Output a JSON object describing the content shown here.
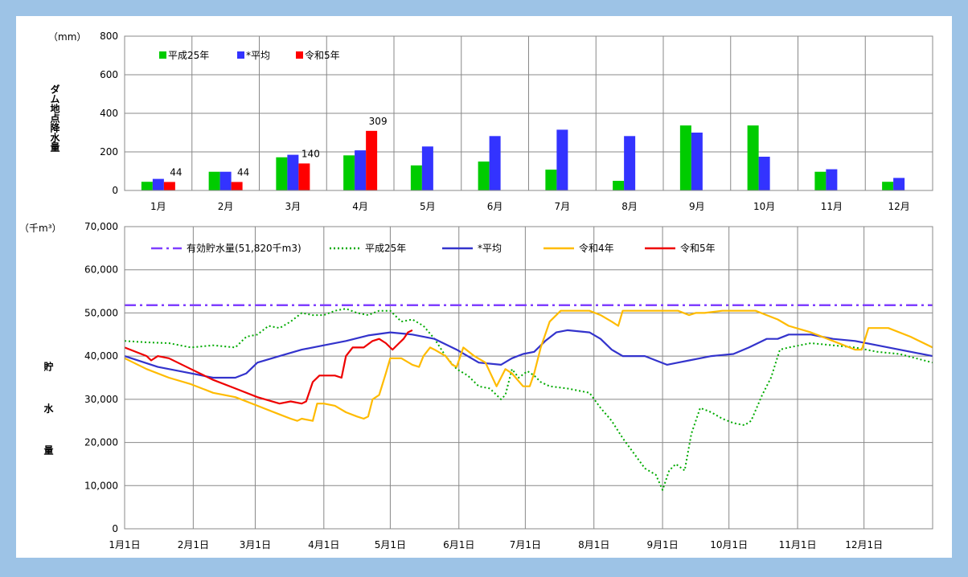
{
  "chart_data": [
    {
      "type": "bar",
      "ylabel": "ダム地点降水量",
      "yunit": "（mm）",
      "ylim": [
        0,
        800
      ],
      "yticks": [
        "0",
        "200",
        "400",
        "600",
        "800"
      ],
      "grid": true,
      "legend_position": "top-left",
      "categories": [
        "1月",
        "2月",
        "3月",
        "4月",
        "5月",
        "6月",
        "7月",
        "8月",
        "9月",
        "10月",
        "11月",
        "12月"
      ],
      "series": [
        {
          "name": "平成25年",
          "color": "#00cc00",
          "values": [
            45,
            97,
            172,
            182,
            130,
            150,
            108,
            50,
            337,
            337,
            97,
            45
          ]
        },
        {
          "name": "*平均",
          "color": "#3333ff",
          "values": [
            60,
            97,
            185,
            208,
            228,
            282,
            315,
            282,
            300,
            175,
            110,
            65
          ]
        },
        {
          "name": "令和5年",
          "color": "#ff0000",
          "values": [
            44,
            44,
            140,
            309,
            null,
            null,
            null,
            null,
            null,
            null,
            null,
            null
          ]
        }
      ],
      "data_labels": [
        {
          "series": 2,
          "index": 0,
          "text": "44"
        },
        {
          "series": 2,
          "index": 1,
          "text": "44"
        },
        {
          "series": 2,
          "index": 2,
          "text": "140"
        },
        {
          "series": 2,
          "index": 3,
          "text": "309"
        }
      ]
    },
    {
      "type": "line",
      "ylabel": "貯水量",
      "yunit": "（千m³）",
      "ylim": [
        0,
        70000
      ],
      "yticks": [
        "0",
        "10,000",
        "20,000",
        "30,000",
        "40,000",
        "50,000",
        "60,000",
        "70,000"
      ],
      "x_ticks": [
        "1月1日",
        "2月1日",
        "3月1日",
        "4月1日",
        "5月1日",
        "6月1日",
        "7月1日",
        "8月1日",
        "9月1日",
        "10月1日",
        "11月1日",
        "12月1日"
      ],
      "x_tick_days": [
        0,
        31,
        59,
        90,
        120,
        151,
        181,
        212,
        243,
        273,
        304,
        334
      ],
      "x_range_days": [
        0,
        365
      ],
      "grid": true,
      "legend_position": "top",
      "series": [
        {
          "name": "有効貯水量(51,820千m3)",
          "color": "#7f3fff",
          "style": "dashdot",
          "points": [
            [
              0,
              51820
            ],
            [
              365,
              51820
            ]
          ]
        },
        {
          "name": "平成25年",
          "color": "#00aa00",
          "style": "dotted",
          "points": [
            [
              0,
              43500
            ],
            [
              10,
              43200
            ],
            [
              20,
              43000
            ],
            [
              30,
              42000
            ],
            [
              40,
              42500
            ],
            [
              50,
              42000
            ],
            [
              55,
              44500
            ],
            [
              60,
              45000
            ],
            [
              65,
              47000
            ],
            [
              70,
              46500
            ],
            [
              75,
              48000
            ],
            [
              80,
              50000
            ],
            [
              85,
              49500
            ],
            [
              90,
              49500
            ],
            [
              95,
              50500
            ],
            [
              100,
              51000
            ],
            [
              105,
              50000
            ],
            [
              110,
              49500
            ],
            [
              115,
              50500
            ],
            [
              120,
              50500
            ],
            [
              125,
              48000
            ],
            [
              130,
              48500
            ],
            [
              135,
              47000
            ],
            [
              140,
              44000
            ],
            [
              145,
              40000
            ],
            [
              150,
              37000
            ],
            [
              155,
              35500
            ],
            [
              160,
              33000
            ],
            [
              165,
              32500
            ],
            [
              170,
              30000
            ],
            [
              172,
              31000
            ],
            [
              175,
              37000
            ],
            [
              178,
              35000
            ],
            [
              182,
              36500
            ],
            [
              185,
              35500
            ],
            [
              188,
              34000
            ],
            [
              192,
              33000
            ],
            [
              200,
              32500
            ],
            [
              205,
              32000
            ],
            [
              210,
              31500
            ],
            [
              215,
              28000
            ],
            [
              220,
              25000
            ],
            [
              225,
              21000
            ],
            [
              230,
              17500
            ],
            [
              235,
              14000
            ],
            [
              240,
              12500
            ],
            [
              243,
              9000
            ],
            [
              246,
              13500
            ],
            [
              249,
              15000
            ],
            [
              253,
              13500
            ],
            [
              256,
              22000
            ],
            [
              260,
              28000
            ],
            [
              265,
              27000
            ],
            [
              270,
              25500
            ],
            [
              275,
              24500
            ],
            [
              280,
              24000
            ],
            [
              283,
              25000
            ],
            [
              288,
              31000
            ],
            [
              292,
              35000
            ],
            [
              296,
              41500
            ],
            [
              300,
              42000
            ],
            [
              310,
              43000
            ],
            [
              320,
              42500
            ],
            [
              330,
              42000
            ],
            [
              340,
              41000
            ],
            [
              350,
              40500
            ],
            [
              365,
              38500
            ]
          ]
        },
        {
          "name": "*平均",
          "color": "#3333cc",
          "style": "solid",
          "points": [
            [
              0,
              40000
            ],
            [
              15,
              37500
            ],
            [
              30,
              36000
            ],
            [
              40,
              35000
            ],
            [
              50,
              35000
            ],
            [
              55,
              36000
            ],
            [
              60,
              38500
            ],
            [
              70,
              40000
            ],
            [
              80,
              41500
            ],
            [
              90,
              42500
            ],
            [
              100,
              43500
            ],
            [
              110,
              44800
            ],
            [
              120,
              45500
            ],
            [
              130,
              45000
            ],
            [
              140,
              44000
            ],
            [
              150,
              41500
            ],
            [
              160,
              38500
            ],
            [
              170,
              38000
            ],
            [
              175,
              39500
            ],
            [
              180,
              40500
            ],
            [
              185,
              41000
            ],
            [
              190,
              43500
            ],
            [
              195,
              45500
            ],
            [
              200,
              46000
            ],
            [
              210,
              45500
            ],
            [
              215,
              44000
            ],
            [
              220,
              41500
            ],
            [
              225,
              40000
            ],
            [
              235,
              40000
            ],
            [
              240,
              39000
            ],
            [
              245,
              38000
            ],
            [
              250,
              38500
            ],
            [
              255,
              39000
            ],
            [
              260,
              39500
            ],
            [
              265,
              40000
            ],
            [
              275,
              40500
            ],
            [
              282,
              42000
            ],
            [
              290,
              44000
            ],
            [
              295,
              44000
            ],
            [
              300,
              45000
            ],
            [
              310,
              45000
            ],
            [
              320,
              44000
            ],
            [
              330,
              43500
            ],
            [
              340,
              42500
            ],
            [
              350,
              41500
            ],
            [
              365,
              40000
            ]
          ]
        },
        {
          "name": "令和4年",
          "color": "#ffbb00",
          "style": "solid",
          "points": [
            [
              0,
              39500
            ],
            [
              10,
              37000
            ],
            [
              20,
              35000
            ],
            [
              30,
              33500
            ],
            [
              40,
              31500
            ],
            [
              50,
              30500
            ],
            [
              60,
              28500
            ],
            [
              70,
              26500
            ],
            [
              75,
              25500
            ],
            [
              78,
              25000
            ],
            [
              80,
              25500
            ],
            [
              85,
              25000
            ],
            [
              87,
              29000
            ],
            [
              90,
              29000
            ],
            [
              95,
              28500
            ],
            [
              100,
              27000
            ],
            [
              105,
              26000
            ],
            [
              108,
              25500
            ],
            [
              110,
              26000
            ],
            [
              112,
              30000
            ],
            [
              115,
              31000
            ],
            [
              118,
              36000
            ],
            [
              120,
              39500
            ],
            [
              125,
              39500
            ],
            [
              130,
              38000
            ],
            [
              133,
              37500
            ],
            [
              135,
              40000
            ],
            [
              138,
              42000
            ],
            [
              140,
              41500
            ],
            [
              145,
              40000
            ],
            [
              148,
              38000
            ],
            [
              150,
              37500
            ],
            [
              153,
              42000
            ],
            [
              158,
              40000
            ],
            [
              163,
              38500
            ],
            [
              168,
              33000
            ],
            [
              172,
              37000
            ],
            [
              175,
              36000
            ],
            [
              180,
              33000
            ],
            [
              183,
              33000
            ],
            [
              185,
              36000
            ],
            [
              188,
              42000
            ],
            [
              192,
              48000
            ],
            [
              197,
              50500
            ],
            [
              210,
              50500
            ],
            [
              215,
              49500
            ],
            [
              220,
              48000
            ],
            [
              223,
              47000
            ],
            [
              225,
              50500
            ],
            [
              240,
              50500
            ],
            [
              250,
              50500
            ],
            [
              255,
              49500
            ],
            [
              258,
              50000
            ],
            [
              262,
              50000
            ],
            [
              270,
              50500
            ],
            [
              280,
              50500
            ],
            [
              285,
              50500
            ],
            [
              290,
              49500
            ],
            [
              295,
              48500
            ],
            [
              300,
              47000
            ],
            [
              310,
              45500
            ],
            [
              320,
              43500
            ],
            [
              330,
              41500
            ],
            [
              333,
              41500
            ],
            [
              336,
              46500
            ],
            [
              345,
              46500
            ],
            [
              355,
              44500
            ],
            [
              365,
              42000
            ]
          ]
        },
        {
          "name": "令和5年",
          "color": "#ee0000",
          "style": "solid",
          "points": [
            [
              0,
              42000
            ],
            [
              10,
              40000
            ],
            [
              12,
              39000
            ],
            [
              15,
              40000
            ],
            [
              20,
              39500
            ],
            [
              30,
              37000
            ],
            [
              40,
              34500
            ],
            [
              50,
              32500
            ],
            [
              60,
              30500
            ],
            [
              70,
              29000
            ],
            [
              75,
              29500
            ],
            [
              80,
              29000
            ],
            [
              82,
              29500
            ],
            [
              85,
              34000
            ],
            [
              88,
              35500
            ],
            [
              95,
              35500
            ],
            [
              98,
              35000
            ],
            [
              100,
              40000
            ],
            [
              103,
              42000
            ],
            [
              108,
              42000
            ],
            [
              112,
              43500
            ],
            [
              115,
              44000
            ],
            [
              118,
              43000
            ],
            [
              121,
              41500
            ],
            [
              124,
              43000
            ],
            [
              126,
              44000
            ],
            [
              128,
              45500
            ],
            [
              130,
              46000
            ]
          ]
        }
      ]
    }
  ]
}
